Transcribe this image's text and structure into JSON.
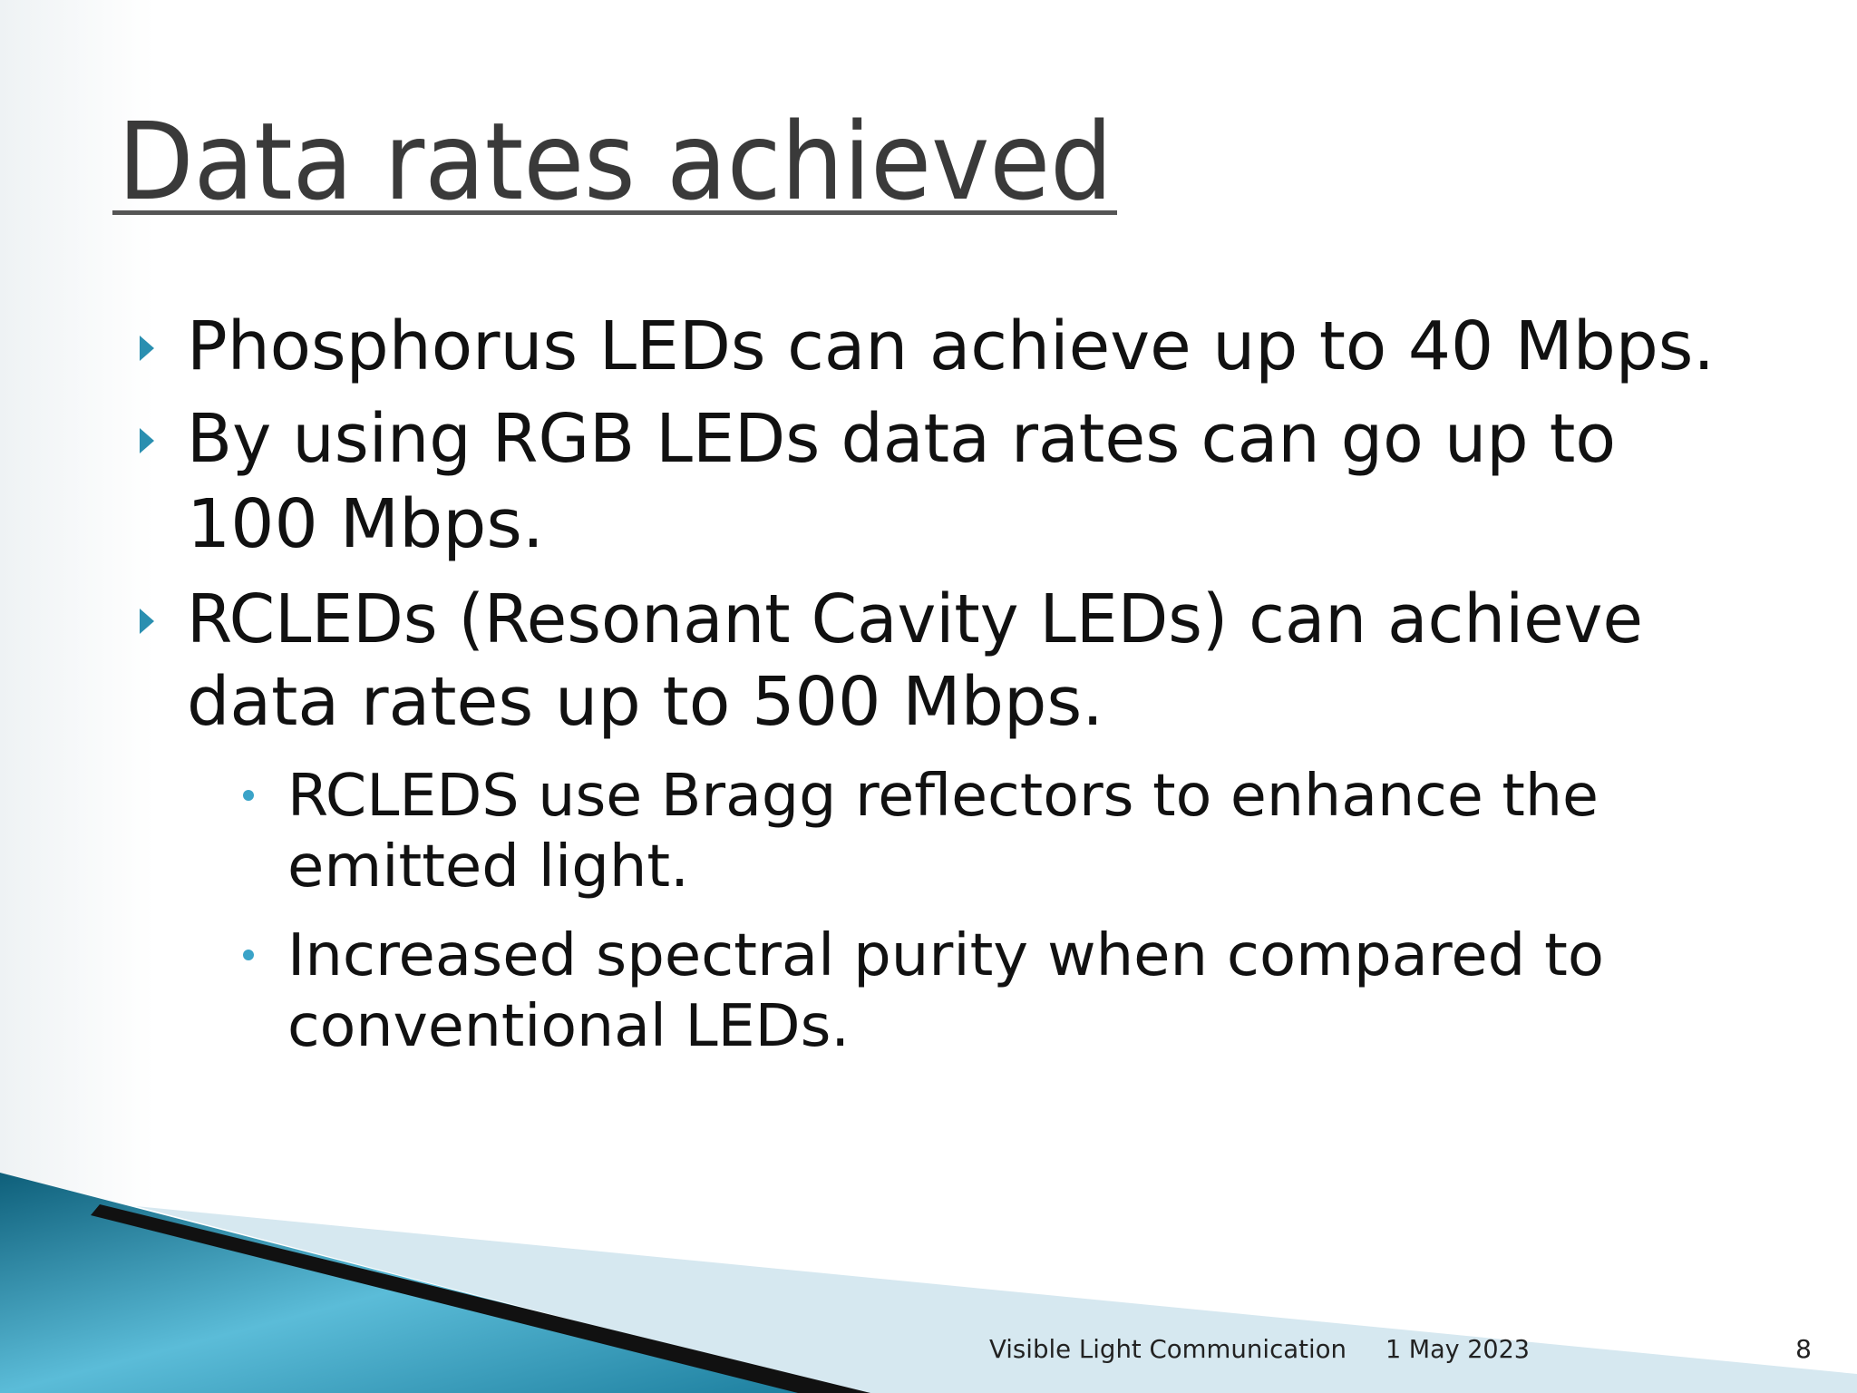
{
  "slide": {
    "title": "Data rates achieved",
    "bullets": [
      {
        "lines": [
          "Phosphorus LEDs can achieve up to 40 Mbps."
        ]
      },
      {
        "lines": [
          "By using RGB LEDs data rates can go up to",
          "100 Mbps."
        ]
      },
      {
        "lines": [
          "RCLEDs (Resonant Cavity LEDs) can achieve",
          "data rates up to 500 Mbps."
        ],
        "sub_bullets": [
          {
            "lines": [
              "RCLEDS use Bragg reflectors to enhance the",
              "emitted light."
            ]
          },
          {
            "lines": [
              "Increased spectral purity when compared to",
              "conventional LEDs."
            ]
          }
        ]
      }
    ],
    "footer": {
      "text": "Visible Light Communication",
      "date": "1 May 2023",
      "page": "8"
    }
  }
}
